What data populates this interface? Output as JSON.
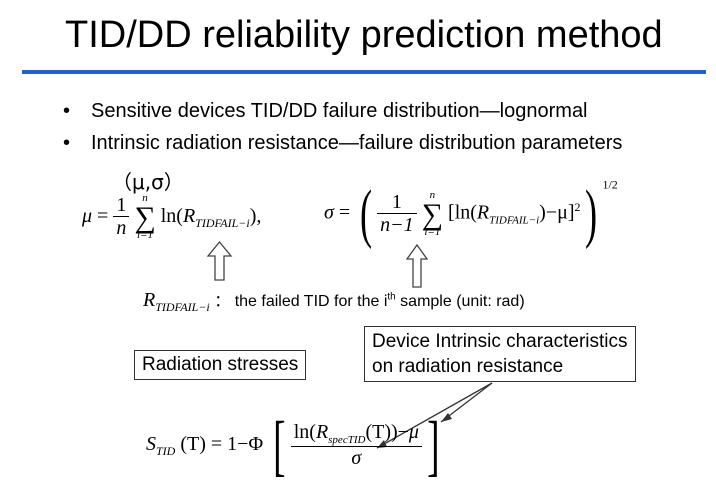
{
  "slide": {
    "title": "TID/DD reliability prediction method",
    "bullets": [
      "Sensitive devices TID/DD failure distribution—lognormal",
      "Intrinsic radiation resistance—failure distribution parameters"
    ],
    "params_label": "（μ,σ）",
    "accent_color": "#1f5fd6"
  },
  "formulas": {
    "mu_lhs": "μ",
    "eq": "=",
    "one": "1",
    "n": "n",
    "sum_top": "n",
    "sum_bottom": "i=1",
    "sigma_symbol": "∑",
    "ln": "ln(",
    "R": "R",
    "R_sub": "TIDFAIL−i",
    "close_comma": "),",
    "sigma_lhs": "σ",
    "n_minus_1": "n−1",
    "lnbracket": "[ln(",
    "minus_mu": ")−μ]",
    "square": "2",
    "half_power": "1/2",
    "S": "S",
    "S_sub": "TID",
    "T_eq": "(T) = 1−Φ",
    "ln_spec": "ln(",
    "spec_sub": "specTID",
    "T_close": "(T))−",
    "mu_num": "μ",
    "sigma_den": "σ"
  },
  "note": {
    "symbol": "R",
    "symbol_sub": "TIDFAIL−i",
    "separator": "：",
    "text_before": "the failed TID for the i",
    "sup": "th",
    "text_after": " sample (unit: rad)"
  },
  "callouts": {
    "radiation_stresses": "Radiation stresses",
    "intrinsic_line1": "Device Intrinsic characteristics",
    "intrinsic_line2": "on radiation resistance"
  }
}
